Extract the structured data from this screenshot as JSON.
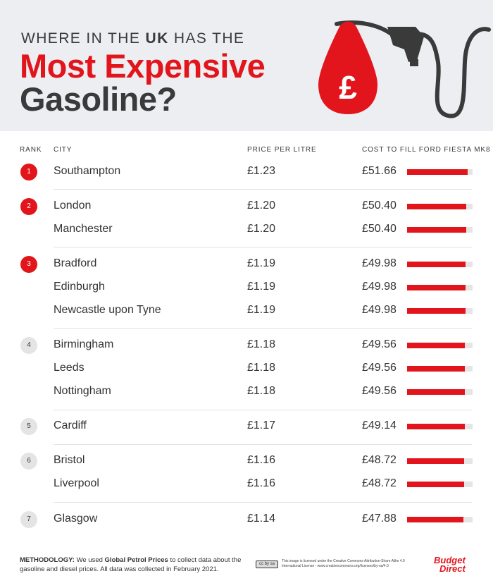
{
  "header": {
    "kicker_pre": "WHERE IN THE ",
    "kicker_bold": "UK",
    "kicker_post": " HAS THE",
    "title_line1": "Most Expensive",
    "title_line2": "Gasoline?",
    "drop_symbol": "£",
    "icons": [
      "fuel-drop-icon",
      "fuel-nozzle-icon"
    ]
  },
  "columns": {
    "rank": "RANK",
    "city": "CITY",
    "price": "PRICE PER LITRE",
    "cost": "COST TO FILL FORD FIESTA MK8"
  },
  "colors": {
    "accent": "#e2151c",
    "dark": "#3a3a3a",
    "header_bg": "#eceef1",
    "track": "#e5e5e5",
    "badge_grey": "#e4e4e4"
  },
  "chart_data": {
    "type": "table",
    "title": "Most Expensive Gasoline?",
    "bar_scale_max": 56,
    "rows": [
      {
        "rank": "1",
        "city": "Southampton",
        "price": "£1.23",
        "cost": "£51.66",
        "cost_value": 51.66
      },
      {
        "rank": "2",
        "city": "London",
        "price": "£1.20",
        "cost": "£50.40",
        "cost_value": 50.4
      },
      {
        "rank": "",
        "city": "Manchester",
        "price": "£1.20",
        "cost": "£50.40",
        "cost_value": 50.4
      },
      {
        "rank": "3",
        "city": "Bradford",
        "price": "£1.19",
        "cost": "£49.98",
        "cost_value": 49.98
      },
      {
        "rank": "",
        "city": "Edinburgh",
        "price": "£1.19",
        "cost": "£49.98",
        "cost_value": 49.98
      },
      {
        "rank": "",
        "city": "Newcastle upon Tyne",
        "price": "£1.19",
        "cost": "£49.98",
        "cost_value": 49.98
      },
      {
        "rank": "4",
        "city": "Birmingham",
        "price": "£1.18",
        "cost": "£49.56",
        "cost_value": 49.56
      },
      {
        "rank": "",
        "city": "Leeds",
        "price": "£1.18",
        "cost": "£49.56",
        "cost_value": 49.56
      },
      {
        "rank": "",
        "city": "Nottingham",
        "price": "£1.18",
        "cost": "£49.56",
        "cost_value": 49.56
      },
      {
        "rank": "5",
        "city": "Cardiff",
        "price": "£1.17",
        "cost": "£49.14",
        "cost_value": 49.14
      },
      {
        "rank": "6",
        "city": "Bristol",
        "price": "£1.16",
        "cost": "£48.72",
        "cost_value": 48.72
      },
      {
        "rank": "",
        "city": "Liverpool",
        "price": "£1.16",
        "cost": "£48.72",
        "cost_value": 48.72
      },
      {
        "rank": "7",
        "city": "Glasgow",
        "price": "£1.14",
        "cost": "£47.88",
        "cost_value": 47.88
      }
    ]
  },
  "footer": {
    "method_label": "METHODOLOGY:",
    "method_pre": " We used ",
    "method_source": "Global Petrol Prices",
    "method_post": " to collect data about the gasoline and diesel prices. All data was collected in February 2021.",
    "cc_badge": "cc by sa",
    "license": "This image is licensed under the Creative Commons Attribution-Share Alike 4.0 International License - www.creativecommons.org/licenses/by-sa/4.0",
    "logo_line1": "Budget",
    "logo_line2": "Direct"
  }
}
